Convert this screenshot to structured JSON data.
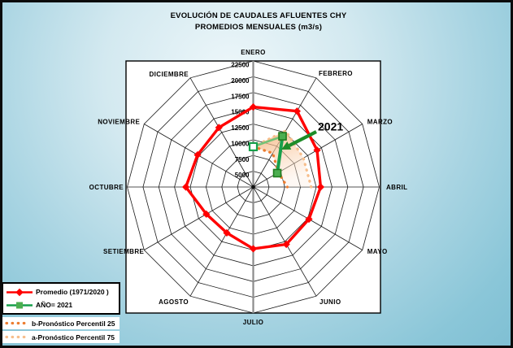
{
  "title": {
    "line1": "EVOLUCIÓN DE CAUDALES AFLUENTES CHY",
    "line2": "PROMEDIOS MENSUALES (m3/s)"
  },
  "chart_data": {
    "type": "radar",
    "title": "EVOLUCIÓN DE CAUDALES AFLUENTES CHY PROMEDIOS MENSUALES (m3/s)",
    "unit": "m3/s",
    "categories": [
      "ENERO",
      "FEBRERO",
      "MARZO",
      "ABRIL",
      "MAYO",
      "JUNIO",
      "JULIO",
      "AGOSTO",
      "SETIEMBRE",
      "OCTUBRE",
      "NOVIEMBRE",
      "DICIEMBRE"
    ],
    "axis": {
      "min": 2500,
      "max": 22500,
      "step": 2500,
      "ticks": [
        "5000",
        "7500",
        "10000",
        "12500",
        "15000",
        "17500",
        "20000",
        "22500"
      ],
      "grid": true
    },
    "series": [
      {
        "name": "Promedio (1971/2020 )",
        "type": "line-closed",
        "color": "#FF0000",
        "marker": "diamond",
        "values": [
          15200,
          16400,
          14200,
          13200,
          12700,
          13000,
          12300,
          10900,
          11100,
          13200,
          12700,
          13400
        ]
      },
      {
        "name": "AÑO= 2021",
        "type": "line",
        "color": "#17A04B",
        "color_light": "#74C276",
        "marker": "square",
        "marker_fill": "#4CAE50",
        "marker_border": "#1E7B1E",
        "values": [
          8900,
          11800,
          6900,
          null,
          null,
          null,
          null,
          null,
          null,
          null,
          null,
          null
        ]
      },
      {
        "name": "b-Pronóstico Percentil 25",
        "type": "dotted",
        "color": "#ED7D31",
        "values": [
          8900,
          8700,
          7100,
          7900,
          null,
          null,
          null,
          null,
          null,
          null,
          null,
          null
        ]
      },
      {
        "name": "a-Pronóstico Percentil 75",
        "type": "dotted",
        "color": "#F7BE8C",
        "values": [
          8900,
          12800,
          11700,
          11700,
          null,
          null,
          null,
          null,
          null,
          null,
          null,
          null
        ]
      }
    ],
    "band": {
      "between": [
        2,
        3
      ],
      "color_top": "#F4A868",
      "color_bottom": "#FDECDE"
    },
    "annotation": {
      "text": "2021",
      "arrow_color": "#1E8C28"
    },
    "legend_position": "bottom-left"
  }
}
